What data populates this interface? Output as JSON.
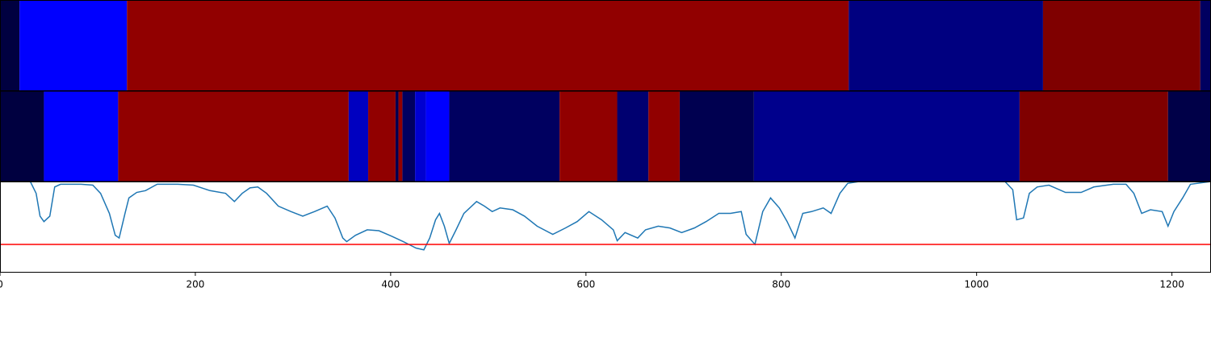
{
  "chart_data": [
    {
      "type": "strip",
      "xlim": [
        0,
        1240
      ],
      "segments": [
        {
          "start": 0,
          "end": 20,
          "color": "#000040"
        },
        {
          "start": 20,
          "end": 130,
          "color": "#0000ff"
        },
        {
          "start": 130,
          "end": 869,
          "color": "#910000"
        },
        {
          "start": 869,
          "end": 1068,
          "color": "#000080"
        },
        {
          "start": 1068,
          "end": 1229,
          "color": "#7f0000"
        },
        {
          "start": 1229,
          "end": 1240,
          "color": "#000060"
        }
      ]
    },
    {
      "type": "strip",
      "xlim": [
        0,
        1240
      ],
      "segments": [
        {
          "start": 0,
          "end": 45,
          "color": "#000040"
        },
        {
          "start": 45,
          "end": 121,
          "color": "#0000ff"
        },
        {
          "start": 121,
          "end": 357,
          "color": "#910000"
        },
        {
          "start": 357,
          "end": 377,
          "color": "#0000c0"
        },
        {
          "start": 377,
          "end": 405,
          "color": "#910000"
        },
        {
          "start": 405,
          "end": 408,
          "color": "#000050"
        },
        {
          "start": 408,
          "end": 412,
          "color": "#910000"
        },
        {
          "start": 412,
          "end": 425,
          "color": "#000060"
        },
        {
          "start": 425,
          "end": 436,
          "color": "#0000d0"
        },
        {
          "start": 436,
          "end": 460,
          "color": "#0000ff"
        },
        {
          "start": 460,
          "end": 573,
          "color": "#000060"
        },
        {
          "start": 573,
          "end": 632,
          "color": "#910000"
        },
        {
          "start": 632,
          "end": 664,
          "color": "#000070"
        },
        {
          "start": 664,
          "end": 696,
          "color": "#910000"
        },
        {
          "start": 696,
          "end": 772,
          "color": "#000050"
        },
        {
          "start": 772,
          "end": 1044,
          "color": "#00008c"
        },
        {
          "start": 1044,
          "end": 1196,
          "color": "#7f0000"
        },
        {
          "start": 1196,
          "end": 1240,
          "color": "#000048"
        }
      ]
    },
    {
      "type": "line",
      "xlim": [
        0,
        1240
      ],
      "ylim": [
        0,
        1
      ],
      "xticks": [
        0,
        200,
        400,
        600,
        800,
        1000,
        1200
      ],
      "x": [
        31,
        37,
        41,
        45,
        51,
        56,
        62,
        83,
        95,
        103,
        112,
        118,
        122,
        128,
        132,
        140,
        149,
        161,
        182,
        198,
        215,
        231,
        240,
        248,
        256,
        264,
        273,
        285,
        298,
        310,
        322,
        335,
        343,
        351,
        355,
        364,
        376,
        388,
        401,
        413,
        426,
        434,
        440,
        446,
        450,
        455,
        460,
        467,
        475,
        488,
        496,
        504,
        512,
        525,
        537,
        550,
        566,
        579,
        591,
        603,
        616,
        628,
        632,
        640,
        653,
        661,
        674,
        686,
        698,
        711,
        723,
        736,
        748,
        759,
        764,
        773,
        781,
        789,
        798,
        806,
        814,
        822,
        831,
        843,
        851,
        860,
        868,
        880,
        1029,
        1037,
        1041,
        1048,
        1054,
        1062,
        1074,
        1091,
        1107,
        1120,
        1140,
        1153,
        1161,
        1169,
        1178,
        1190,
        1196,
        1202,
        1211,
        1219,
        1240
      ],
      "series": [
        {
          "color": "#1f77b4",
          "values": [
            1.0,
            0.87,
            0.62,
            0.56,
            0.62,
            0.94,
            0.97,
            0.97,
            0.96,
            0.87,
            0.65,
            0.41,
            0.38,
            0.65,
            0.82,
            0.88,
            0.9,
            0.97,
            0.97,
            0.96,
            0.9,
            0.87,
            0.78,
            0.87,
            0.93,
            0.94,
            0.87,
            0.73,
            0.67,
            0.62,
            0.67,
            0.73,
            0.6,
            0.38,
            0.34,
            0.41,
            0.47,
            0.46,
            0.4,
            0.34,
            0.27,
            0.25,
            0.38,
            0.58,
            0.65,
            0.51,
            0.32,
            0.47,
            0.65,
            0.78,
            0.73,
            0.67,
            0.71,
            0.69,
            0.62,
            0.51,
            0.42,
            0.49,
            0.56,
            0.67,
            0.58,
            0.47,
            0.35,
            0.44,
            0.38,
            0.47,
            0.51,
            0.49,
            0.44,
            0.49,
            0.56,
            0.65,
            0.65,
            0.67,
            0.42,
            0.31,
            0.67,
            0.82,
            0.71,
            0.56,
            0.38,
            0.65,
            0.67,
            0.71,
            0.65,
            0.87,
            0.98,
            1.0,
            1.0,
            0.91,
            0.58,
            0.6,
            0.87,
            0.94,
            0.96,
            0.88,
            0.88,
            0.94,
            0.97,
            0.97,
            0.87,
            0.65,
            0.69,
            0.67,
            0.51,
            0.67,
            0.82,
            0.97,
            1.0
          ]
        }
      ],
      "hline": {
        "value": 0.31,
        "color": "#ff0000"
      }
    }
  ]
}
